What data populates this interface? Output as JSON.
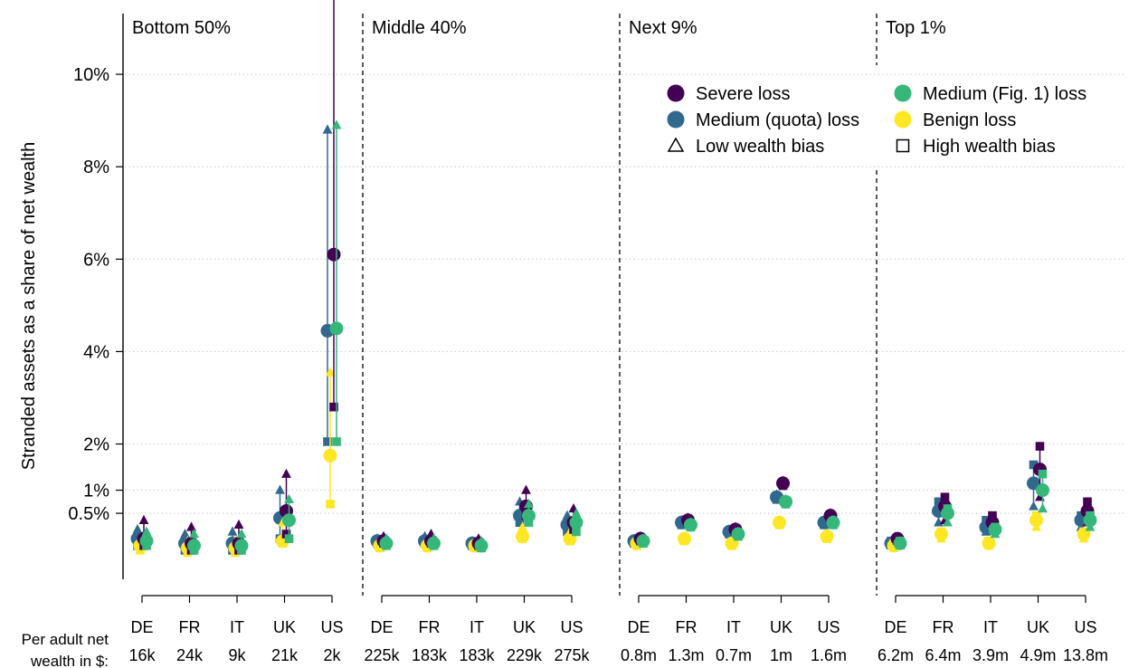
{
  "colors": {
    "severe": "#440154",
    "medium_quota": "#31688e",
    "medium_fig1": "#35b779",
    "benign": "#fde725",
    "grid": "#c8c8c8",
    "axis": "#000000"
  },
  "chart_data": {
    "type": "scatter",
    "ylabel": "Stranded assets as a share of net wealth",
    "yticks": [
      {
        "value": 0.5,
        "label": "0.5%"
      },
      {
        "value": 1,
        "label": "1%"
      },
      {
        "value": 2,
        "label": "2%"
      },
      {
        "value": 4,
        "label": "4%"
      },
      {
        "value": 6,
        "label": "6%"
      },
      {
        "value": 8,
        "label": "8%"
      },
      {
        "value": 10,
        "label": "10%"
      }
    ],
    "ylim": [
      -0.85,
      12.3
    ],
    "grid": true,
    "legend_position": "top-right",
    "legend": [
      {
        "key": "severe",
        "label": "Severe loss",
        "marker": "circle"
      },
      {
        "key": "medium_fig1",
        "label": "Medium (Fig. 1) loss",
        "marker": "circle"
      },
      {
        "key": "medium_quota",
        "label": "Medium (quota) loss",
        "marker": "circle"
      },
      {
        "key": "benign",
        "label": "Benign loss",
        "marker": "circle"
      },
      {
        "key": "low",
        "label": "Low wealth bias",
        "marker": "triangle-open"
      },
      {
        "key": "high",
        "label": "High wealth bias",
        "marker": "square-open"
      }
    ],
    "wealth_row_label": [
      "Per adult net",
      "wealth in $:"
    ],
    "series_order": [
      "medium_quota",
      "benign",
      "severe",
      "medium_fig1"
    ],
    "panels": [
      {
        "title": "Bottom 50%",
        "countries": [
          {
            "name": "DE",
            "wealth": "16k",
            "severe": [
              -0.05,
              0.35,
              -0.2
            ],
            "medium_quota": [
              -0.05,
              0.15,
              -0.2
            ],
            "medium_fig1": [
              -0.1,
              0.1,
              -0.2
            ],
            "benign": [
              -0.2,
              -0.1,
              -0.3
            ]
          },
          {
            "name": "FR",
            "wealth": "24k",
            "severe": [
              -0.15,
              0.2,
              -0.3
            ],
            "medium_quota": [
              -0.15,
              0.05,
              -0.3
            ],
            "medium_fig1": [
              -0.2,
              0.05,
              -0.3
            ],
            "benign": [
              -0.25,
              -0.1,
              -0.35
            ]
          },
          {
            "name": "IT",
            "wealth": "9k",
            "severe": [
              -0.15,
              0.25,
              -0.3
            ],
            "medium_quota": [
              -0.15,
              0.1,
              -0.3
            ],
            "medium_fig1": [
              -0.2,
              0.05,
              -0.3
            ],
            "benign": [
              -0.25,
              -0.1,
              -0.35
            ]
          },
          {
            "name": "UK",
            "wealth": "21k",
            "severe": [
              0.55,
              1.35,
              0.05
            ],
            "medium_quota": [
              0.4,
              1.0,
              -0.05
            ],
            "medium_fig1": [
              0.35,
              0.8,
              -0.05
            ],
            "benign": [
              -0.1,
              0.3,
              -0.15
            ]
          },
          {
            "name": "US",
            "wealth": "2k",
            "severe": [
              6.1,
              12.2,
              2.8
            ],
            "medium_quota": [
              4.45,
              8.8,
              2.05
            ],
            "medium_fig1": [
              4.5,
              8.9,
              2.05
            ],
            "benign": [
              1.75,
              3.55,
              0.7
            ]
          }
        ]
      },
      {
        "title": "Middle 40%",
        "countries": [
          {
            "name": "DE",
            "wealth": "225k",
            "severe": [
              -0.1,
              0.0,
              -0.15
            ],
            "medium_quota": [
              -0.1,
              -0.05,
              -0.15
            ],
            "medium_fig1": [
              -0.15,
              -0.05,
              -0.2
            ],
            "benign": [
              -0.2,
              -0.1,
              -0.25
            ]
          },
          {
            "name": "FR",
            "wealth": "183k",
            "severe": [
              -0.1,
              0.05,
              -0.15
            ],
            "medium_quota": [
              -0.1,
              0.0,
              -0.15
            ],
            "medium_fig1": [
              -0.15,
              -0.05,
              -0.2
            ],
            "benign": [
              -0.2,
              -0.1,
              -0.25
            ]
          },
          {
            "name": "IT",
            "wealth": "183k",
            "severe": [
              -0.15,
              -0.05,
              -0.2
            ],
            "medium_quota": [
              -0.15,
              -0.1,
              -0.2
            ],
            "medium_fig1": [
              -0.2,
              -0.1,
              -0.25
            ],
            "benign": [
              -0.2,
              -0.15,
              -0.25
            ]
          },
          {
            "name": "UK",
            "wealth": "229k",
            "severe": [
              0.65,
              1.0,
              0.45
            ],
            "medium_quota": [
              0.45,
              0.75,
              0.3
            ],
            "medium_fig1": [
              0.45,
              0.7,
              0.3
            ],
            "benign": [
              0.0,
              0.2,
              -0.05
            ]
          },
          {
            "name": "US",
            "wealth": "275k",
            "severe": [
              0.3,
              0.6,
              0.15
            ],
            "medium_quota": [
              0.25,
              0.45,
              0.1
            ],
            "medium_fig1": [
              0.3,
              0.5,
              0.1
            ],
            "benign": [
              -0.05,
              0.1,
              -0.1
            ]
          }
        ]
      },
      {
        "title": "Next 9%",
        "countries": [
          {
            "name": "DE",
            "wealth": "0.8m",
            "severe": [
              -0.05,
              0.0,
              -0.1
            ],
            "medium_quota": [
              -0.1,
              -0.05,
              -0.15
            ],
            "medium_fig1": [
              -0.1,
              -0.05,
              -0.15
            ],
            "benign": [
              -0.15,
              -0.1,
              -0.2
            ]
          },
          {
            "name": "FR",
            "wealth": "1.3m",
            "severe": [
              0.35,
              0.4,
              0.3
            ],
            "medium_quota": [
              0.3,
              0.35,
              0.25
            ],
            "medium_fig1": [
              0.25,
              0.3,
              0.2
            ],
            "benign": [
              -0.05,
              0.0,
              -0.1
            ]
          },
          {
            "name": "IT",
            "wealth": "0.7m",
            "severe": [
              0.15,
              0.2,
              0.1
            ],
            "medium_quota": [
              0.1,
              0.15,
              0.05
            ],
            "medium_fig1": [
              0.05,
              0.1,
              0.0
            ],
            "benign": [
              -0.15,
              -0.1,
              -0.2
            ]
          },
          {
            "name": "UK",
            "wealth": "1m",
            "severe": [
              1.15,
              1.2,
              1.1
            ],
            "medium_quota": [
              0.85,
              0.9,
              0.8
            ],
            "medium_fig1": [
              0.75,
              0.8,
              0.7
            ],
            "benign": [
              0.3,
              0.35,
              0.25
            ]
          },
          {
            "name": "US",
            "wealth": "1.6m",
            "severe": [
              0.45,
              0.5,
              0.4
            ],
            "medium_quota": [
              0.3,
              0.35,
              0.25
            ],
            "medium_fig1": [
              0.3,
              0.35,
              0.25
            ],
            "benign": [
              0.0,
              0.05,
              -0.05
            ]
          }
        ]
      },
      {
        "title": "Top 1%",
        "countries": [
          {
            "name": "DE",
            "wealth": "6.2m",
            "severe": [
              -0.05,
              -0.1,
              -0.05
            ],
            "medium_quota": [
              -0.15,
              -0.2,
              -0.1
            ],
            "medium_fig1": [
              -0.15,
              -0.2,
              -0.1
            ],
            "benign": [
              -0.2,
              -0.25,
              -0.15
            ]
          },
          {
            "name": "FR",
            "wealth": "6.4m",
            "severe": [
              0.65,
              0.35,
              0.85
            ],
            "medium_quota": [
              0.55,
              0.3,
              0.75
            ],
            "medium_fig1": [
              0.5,
              0.3,
              0.6
            ],
            "benign": [
              0.05,
              -0.05,
              0.1
            ]
          },
          {
            "name": "IT",
            "wealth": "3.9m",
            "severe": [
              0.3,
              0.2,
              0.45
            ],
            "medium_quota": [
              0.2,
              0.1,
              0.35
            ],
            "medium_fig1": [
              0.15,
              0.05,
              0.2
            ],
            "benign": [
              -0.15,
              -0.2,
              -0.1
            ]
          },
          {
            "name": "UK",
            "wealth": "4.9m",
            "severe": [
              1.45,
              0.85,
              1.95
            ],
            "medium_quota": [
              1.15,
              0.65,
              1.55
            ],
            "medium_fig1": [
              1.0,
              0.6,
              1.35
            ],
            "benign": [
              0.35,
              0.2,
              0.45
            ]
          },
          {
            "name": "US",
            "wealth": "13.8m",
            "severe": [
              0.55,
              0.3,
              0.75
            ],
            "medium_quota": [
              0.35,
              0.2,
              0.45
            ],
            "medium_fig1": [
              0.35,
              0.2,
              0.45
            ],
            "benign": [
              0.05,
              -0.05,
              0.1
            ]
          }
        ]
      }
    ]
  }
}
